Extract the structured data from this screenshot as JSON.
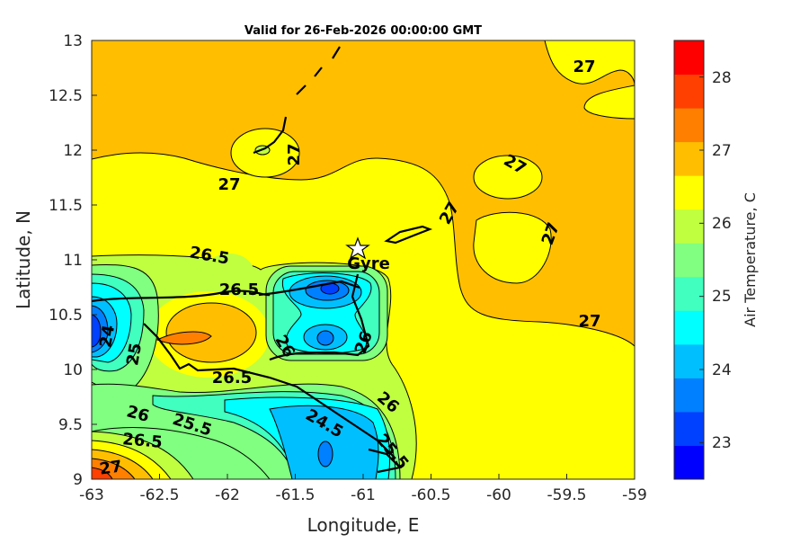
{
  "title": "Valid for 26-Feb-2026 00:00:00 GMT",
  "x_axis": {
    "label": "Longitude, E",
    "ticks": [
      "-63",
      "-62.5",
      "-62",
      "-61.5",
      "-61",
      "-60.5",
      "-60",
      "-59.5",
      "-59"
    ]
  },
  "y_axis": {
    "label": "Latitude, N",
    "ticks": [
      "9",
      "9.5",
      "10",
      "10.5",
      "11",
      "11.5",
      "12",
      "12.5",
      "13"
    ]
  },
  "colorbar": {
    "label": "Air Temperature, C",
    "ticks": [
      "23",
      "24",
      "25",
      "26",
      "27",
      "28"
    ],
    "range": [
      22.5,
      28.5
    ],
    "colors": [
      "#0000ff",
      "#0040ff",
      "#0080ff",
      "#00bfff",
      "#00ffff",
      "#40ffbf",
      "#80ff80",
      "#bfff40",
      "#ffff00",
      "#ffbf00",
      "#ff8000",
      "#ff4000",
      "#ff0000"
    ]
  },
  "marker": {
    "label": "Gyre",
    "icon": "star-icon"
  },
  "contour_labels": [
    "27",
    "27",
    "27",
    "27",
    "27",
    "27",
    "27",
    "26.5",
    "26.5",
    "26.5",
    "26",
    "25.5",
    "26.5",
    "27",
    "24.5",
    "26",
    "26",
    "26",
    "25.5",
    "24",
    "25"
  ],
  "chart_data": {
    "type": "heatmap",
    "title": "Valid for 26-Feb-2026 00:00:00 GMT",
    "xlabel": "Longitude, E",
    "ylabel": "Latitude, N",
    "xlim": [
      -63,
      -59
    ],
    "ylim": [
      9,
      13
    ],
    "colorbar_label": "Air Temperature, C",
    "clim": [
      22.5,
      28.5
    ],
    "features": [
      {
        "desc": "warm region >27 C",
        "lat_range": [
          11.7,
          13
        ],
        "lon_range": [
          -63,
          -59
        ]
      },
      {
        "desc": "cool minimum ~23 C",
        "lon": -63,
        "lat": 10.4
      },
      {
        "desc": "cool minimum ~23.5 C",
        "lon": -61.25,
        "lat": 10.75
      },
      {
        "desc": "cool minimum ~24 C",
        "lon": -61.25,
        "lat": 9.2
      },
      {
        "desc": "warm spot ~27.5 C",
        "lon": -62.4,
        "lat": 10.3
      },
      {
        "desc": "warm corner ~28 C",
        "lon": -63,
        "lat": 9
      }
    ]
  }
}
